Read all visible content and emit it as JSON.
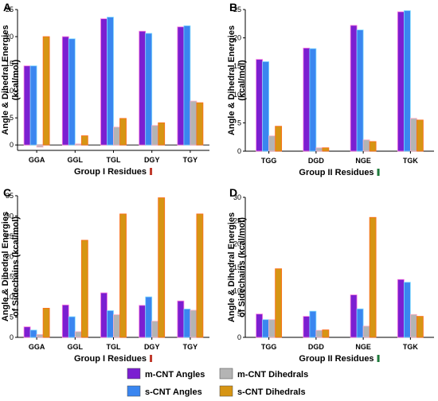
{
  "series_styles": [
    {
      "name": "m-CNT Angles",
      "color": "#7b1fd1",
      "edge": "#ff7be0"
    },
    {
      "name": "s-CNT Angles",
      "color": "#3a86f0",
      "edge": "#7fd9ff"
    },
    {
      "name": "m-CNT Dihedrals",
      "color": "#b4b4b4",
      "edge": "#ffb0c8"
    },
    {
      "name": "s-CNT Dihedrals",
      "color": "#d69514",
      "edge": "#ff6a1a"
    }
  ],
  "legend": {
    "items": [
      {
        "label": "m-CNT Angles",
        "color": "#7b1fd1"
      },
      {
        "label": "m-CNT Dihedrals",
        "color": "#b4b4b4"
      },
      {
        "label": "s-CNT Angles",
        "color": "#3a86f0"
      },
      {
        "label": "s-CNT Dihedrals",
        "color": "#d69514"
      }
    ],
    "placement": "bottom-right"
  },
  "chart_data": [
    {
      "panel": "A",
      "type": "bar",
      "ylabel_lines": [
        "Angle & Dihedral Energies",
        "(kcal/mol)"
      ],
      "xlabel": "Group I Residues",
      "xlabel_marker_color": "#c0392b",
      "categories": [
        "GGA",
        "GGL",
        "TGL",
        "DGY",
        "TGY"
      ],
      "ylim": [
        -1,
        25
      ],
      "yticks": [
        0,
        5,
        10,
        15,
        20,
        25
      ],
      "series": [
        {
          "name": "m-CNT Angles",
          "values": [
            14.6,
            20.0,
            23.3,
            21.0,
            21.8
          ]
        },
        {
          "name": "s-CNT Angles",
          "values": [
            14.6,
            19.6,
            23.6,
            20.6,
            22.0
          ]
        },
        {
          "name": "m-CNT Dihedrals",
          "values": [
            -0.4,
            0.2,
            3.3,
            3.6,
            8.1
          ]
        },
        {
          "name": "s-CNT Dihedrals",
          "values": [
            20.0,
            1.7,
            4.9,
            4.1,
            7.8
          ]
        }
      ]
    },
    {
      "panel": "B",
      "type": "bar",
      "ylabel_lines": [
        "Angle & Dihedral Energies",
        "(kcal/mol)"
      ],
      "xlabel": "Group II Residues",
      "xlabel_marker_color": "#1e7a3a",
      "categories": [
        "TGG",
        "DGD",
        "NGE",
        "TGK"
      ],
      "ylim": [
        0,
        25
      ],
      "yticks": [
        0,
        5,
        10,
        15,
        20,
        25
      ],
      "series": [
        {
          "name": "m-CNT Angles",
          "values": [
            16.2,
            18.2,
            22.2,
            24.6
          ]
        },
        {
          "name": "s-CNT Angles",
          "values": [
            15.8,
            18.1,
            21.4,
            24.8
          ]
        },
        {
          "name": "m-CNT Dihedrals",
          "values": [
            2.7,
            0.6,
            2.0,
            5.8
          ]
        },
        {
          "name": "s-CNT Dihedrals",
          "values": [
            4.4,
            0.6,
            1.7,
            5.5
          ]
        }
      ]
    },
    {
      "panel": "C",
      "type": "bar",
      "ylabel_lines": [
        "Angle & Dihedral Energies",
        "of Sidechains (kcal/mol)"
      ],
      "xlabel": "Group I Residues",
      "xlabel_marker_color": "#c0392b",
      "categories": [
        "GGA",
        "GGL",
        "TGL",
        "DGY",
        "TGY"
      ],
      "ylim": [
        0,
        35
      ],
      "yticks": [
        0,
        5,
        10,
        15,
        20,
        25,
        30,
        35
      ],
      "series": [
        {
          "name": "m-CNT Angles",
          "values": [
            2.6,
            8.0,
            11.0,
            7.9,
            9.0
          ]
        },
        {
          "name": "s-CNT Angles",
          "values": [
            1.8,
            5.1,
            6.6,
            10.0,
            7.0
          ]
        },
        {
          "name": "m-CNT Dihedrals",
          "values": [
            0.7,
            1.4,
            5.6,
            4.0,
            6.7
          ]
        },
        {
          "name": "s-CNT Dihedrals",
          "values": [
            7.2,
            24.0,
            30.5,
            34.5,
            30.5
          ]
        }
      ]
    },
    {
      "panel": "D",
      "type": "bar",
      "ylabel_lines": [
        "Angle & Dihedral Energies",
        "of Sidechains (kcal/mol)"
      ],
      "xlabel": "Group II Residues",
      "xlabel_marker_color": "#1e7a3a",
      "categories": [
        "TGG",
        "DGD",
        "NGE",
        "TGK"
      ],
      "ylim": [
        0,
        30
      ],
      "yticks": [
        0,
        5,
        10,
        15,
        20,
        25,
        30
      ],
      "series": [
        {
          "name": "m-CNT Angles",
          "values": [
            5.0,
            4.5,
            9.1,
            12.4
          ]
        },
        {
          "name": "s-CNT Angles",
          "values": [
            3.8,
            5.6,
            6.1,
            11.8
          ]
        },
        {
          "name": "m-CNT Dihedrals",
          "values": [
            3.8,
            1.5,
            2.4,
            4.9
          ]
        },
        {
          "name": "s-CNT Dihedrals",
          "values": [
            14.7,
            1.6,
            25.7,
            4.5
          ]
        }
      ]
    }
  ]
}
